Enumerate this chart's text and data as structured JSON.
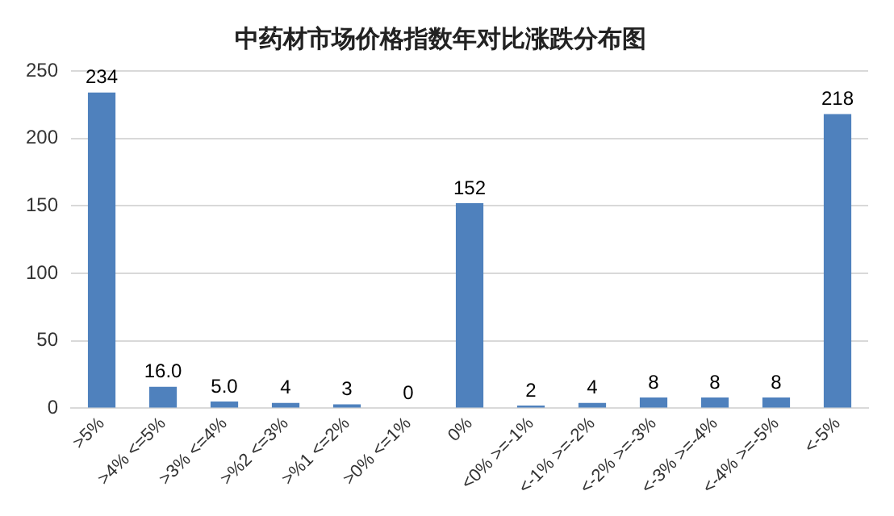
{
  "chart_data": {
    "type": "bar",
    "title": "中药材市场价格指数年对比涨跌分布图",
    "categories": [
      ">5%",
      ">4% <=5%",
      ">3% <=4%",
      ">%2 <=3%",
      ">%1 <=2%",
      ">0% <=1%",
      "0%",
      "<0% >=-1%",
      "<-1% >=-2%",
      "<-2% >=-3%",
      "<-3% >=-4%",
      "<-4% >=-5%",
      "<-5%"
    ],
    "values": [
      234,
      16,
      5,
      4,
      3,
      0,
      152,
      2,
      4,
      8,
      8,
      8,
      218
    ],
    "value_labels": [
      "234",
      "16.0",
      "5.0",
      "4",
      "3",
      "0",
      "152",
      "2",
      "4",
      "8",
      "8",
      "8",
      "218"
    ],
    "color": "#4f81bd",
    "ylim": [
      0,
      250
    ],
    "yticks": [
      0,
      50,
      100,
      150,
      200,
      250
    ],
    "grid": "y",
    "legend": false
  }
}
